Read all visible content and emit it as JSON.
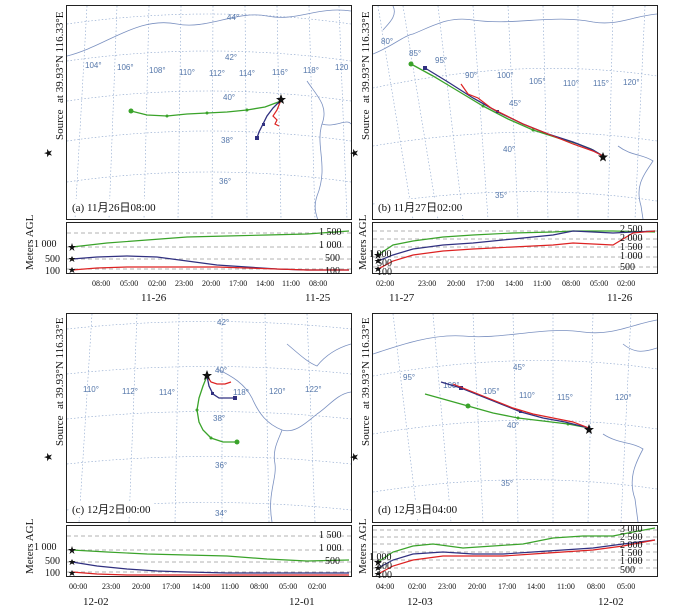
{
  "source_label": "Source",
  "source_star": "★",
  "source_coords": "at 39.93°N 116.33°E",
  "meters_label": "Meters AGL",
  "colors": {
    "green": "#3aa32a",
    "blue": "#303080",
    "red": "#dd2222",
    "grid": "#8aa4cc",
    "coast": "#7a90c0"
  },
  "panels": [
    {
      "caption": "(a) 11月26日08:00",
      "lat_labels": [
        "44°",
        "42°",
        "40°",
        "38°",
        "36°"
      ],
      "lon_labels": [
        "104°",
        "106°",
        "108°",
        "110°",
        "112°",
        "114°",
        "116°",
        "118°",
        "120"
      ],
      "height_left": [
        "1 000",
        "500",
        "100"
      ],
      "height_right": [
        "1 500",
        "1 000",
        "500",
        "100"
      ],
      "x_ticks": [
        "08:00",
        "05:00",
        "02:00",
        "23:00",
        "20:00",
        "17:00",
        "14:00",
        "11:00",
        "08:00"
      ],
      "date_left": "11-26",
      "date_right": "11-25"
    },
    {
      "caption": "(b) 11月27日02:00",
      "lat_labels": [
        "45°",
        "40°",
        "35°"
      ],
      "lon_labels": [
        "80°",
        "85°",
        "90°",
        "95°",
        "100°",
        "105°",
        "110°",
        "115°",
        "120°"
      ],
      "height_left": [
        "1 000",
        "500",
        "100"
      ],
      "height_right": [
        "2 500",
        "2 000",
        "1 500",
        "1 000",
        "500"
      ],
      "x_ticks": [
        "02:00",
        "23:00",
        "20:00",
        "17:00",
        "14:00",
        "11:00",
        "08:00",
        "05:00",
        "02:00"
      ],
      "date_left": "11-27",
      "date_right": "11-26"
    },
    {
      "caption": "(c) 12月2日00:00",
      "lat_labels": [
        "42°",
        "40°",
        "38°",
        "36°",
        "34°"
      ],
      "lon_labels": [
        "110°",
        "112°",
        "114°",
        "118°",
        "120°",
        "122°"
      ],
      "height_left": [
        "1 000",
        "500",
        "100"
      ],
      "height_right": [
        "1 500",
        "1 000",
        "500"
      ],
      "x_ticks": [
        "00:00",
        "23:00",
        "20:00",
        "17:00",
        "14:00",
        "11:00",
        "08:00",
        "05:00",
        "02:00"
      ],
      "date_left": "12-02",
      "date_right": "12-01"
    },
    {
      "caption": "(d) 12月3日04:00",
      "lat_labels": [
        "45°",
        "40°",
        "35°"
      ],
      "lon_labels": [
        "95°",
        "100°",
        "105°",
        "110°",
        "115°",
        "120°"
      ],
      "height_left": [
        "1 000",
        "500",
        "100"
      ],
      "height_right": [
        "3 000",
        "2 500",
        "2 000",
        "1 500",
        "1 000",
        "500"
      ],
      "x_ticks": [
        "04:00",
        "02:00",
        "23:00",
        "20:00",
        "17:00",
        "14:00",
        "11:00",
        "08:00",
        "05:00"
      ],
      "date_left": "12-03",
      "date_right": "12-02"
    }
  ]
}
